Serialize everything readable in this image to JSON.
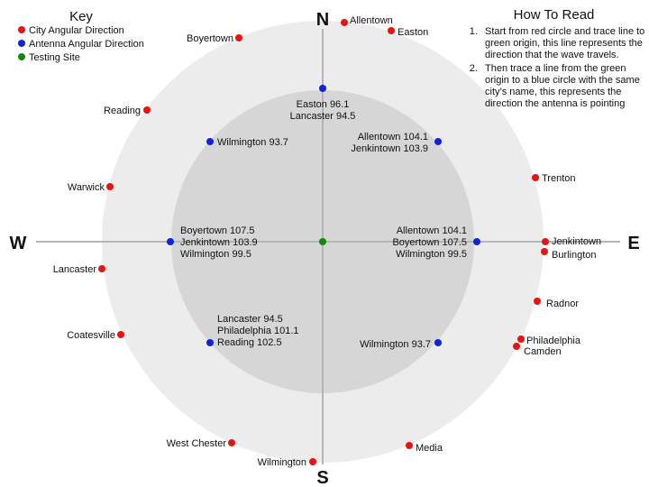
{
  "key": {
    "title": "Key",
    "items": [
      {
        "label": "City Angular Direction",
        "color": "#ee1111"
      },
      {
        "label": "Antenna Angular Direction",
        "color": "#1122dd"
      },
      {
        "label": "Testing Site",
        "color": "#118811"
      }
    ]
  },
  "how_to_read": {
    "title": "How To Read",
    "steps": [
      "Start from red circle and trace line to green origin, this line represents the direction that the wave travels.",
      "Then trace a line from the green origin to a blue circle with the same city’s name, this represents the direction the antenna is pointing"
    ]
  },
  "compass": {
    "north": "N",
    "south": "S",
    "east": "E",
    "west": "W"
  },
  "cities": [
    {
      "name": "Allentown"
    },
    {
      "name": "Easton"
    },
    {
      "name": "Boyertown"
    },
    {
      "name": "Reading"
    },
    {
      "name": "Warwick"
    },
    {
      "name": "Lancaster"
    },
    {
      "name": "Coatesville"
    },
    {
      "name": "West Chester"
    },
    {
      "name": "Wilmington"
    },
    {
      "name": "Media"
    },
    {
      "name": "Camden"
    },
    {
      "name": "Philadelphia"
    },
    {
      "name": "Radnor"
    },
    {
      "name": "Burlington"
    },
    {
      "name": "Jenkintown"
    },
    {
      "name": "Trenton"
    }
  ],
  "antennas": [
    {
      "lines": [
        "Easton 96.1",
        "Lancaster 94.5"
      ]
    },
    {
      "lines": [
        "Allentown 104.1",
        "Jenkintown 103.9"
      ]
    },
    {
      "lines": [
        "Allentown 104.1",
        "Boyertown 107.5",
        "Wilmington 99.5"
      ]
    },
    {
      "lines": [
        "Wilmington 93.7"
      ]
    },
    {
      "lines": [
        "Lancaster 94.5",
        "Philadelphia 101.1",
        "Reading 102.5"
      ]
    },
    {
      "lines": [
        "Boyertown 107.5",
        "Jenkintown 103.9",
        "Wilmington 99.5"
      ]
    },
    {
      "lines": [
        "Wilmington 93.7"
      ]
    }
  ]
}
